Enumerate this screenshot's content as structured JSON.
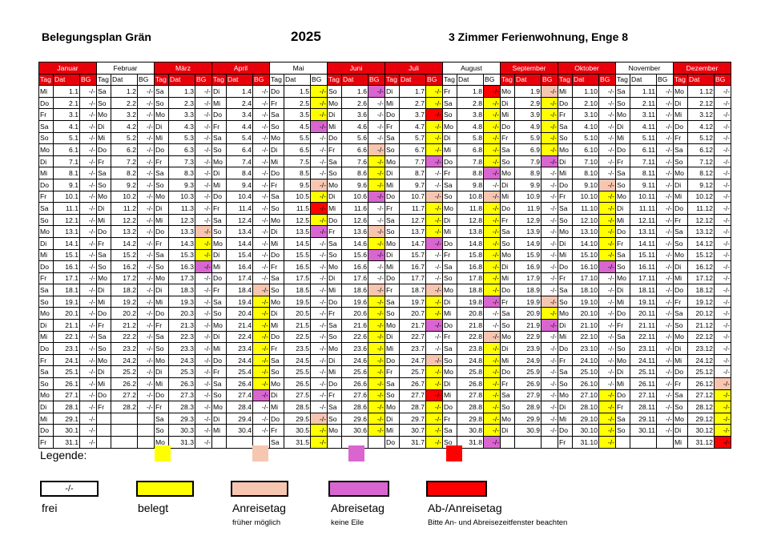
{
  "header": {
    "left": "Belegungsplan Grän",
    "year": "2025",
    "right": "3 Zimmer Ferienwohnung, Enge 8"
  },
  "columns": {
    "tag": "Tag",
    "dat": "Dat",
    "bg": "BG"
  },
  "free_mark": "-/-",
  "colors": {
    "header_red": "#e8000b",
    "belegt": "#ffff00",
    "anreisetag": "#f7c6b0",
    "abreisetag": "#d966d0",
    "ab_anreisetag": "#ff0000"
  },
  "months": [
    {
      "name": "Januar",
      "red": true,
      "days": [
        "Mi",
        "Do",
        "Fr",
        "Sa",
        "So",
        "Mo",
        "Di",
        "Mi",
        "Do",
        "Fr",
        "Sa",
        "So",
        "Mo",
        "Di",
        "Mi",
        "Do",
        "Fr",
        "Sa",
        "So",
        "Mo",
        "Di",
        "Mi",
        "Do",
        "Fr",
        "Sa",
        "So",
        "Mo",
        "Di",
        "Mi",
        "Do",
        "Fr"
      ],
      "dates": [
        "1.1",
        "2.1",
        "3.1",
        "4.1",
        "5.1",
        "6.1",
        "7.1",
        "8.1",
        "9.1",
        "10.1",
        "11.1",
        "12.1",
        "13.1",
        "14.1",
        "15.1",
        "16.1",
        "17.1",
        "18.1",
        "19.1",
        "20.1",
        "21.1",
        "22.1",
        "23.1",
        "24.1",
        "25.1",
        "26.1",
        "27.1",
        "28.1",
        "29.1",
        "30.1",
        "31.1"
      ],
      "status": {}
    },
    {
      "name": "Februar",
      "red": false,
      "days": [
        "Sa",
        "So",
        "Mo",
        "Di",
        "Mi",
        "Do",
        "Fr",
        "Sa",
        "So",
        "Mo",
        "Di",
        "Mi",
        "Do",
        "Fr",
        "Sa",
        "So",
        "Mo",
        "Di",
        "Mi",
        "Do",
        "Fr",
        "Sa",
        "So",
        "Mo",
        "Di",
        "Mi",
        "Do",
        "Fr"
      ],
      "dates": [
        "1.2",
        "2.2",
        "3.2",
        "4.2",
        "5.2",
        "6.2",
        "7.2",
        "8.2",
        "9.2",
        "10.2",
        "11.2",
        "12.2",
        "13.2",
        "14.2",
        "15.2",
        "16.2",
        "17.2",
        "18.2",
        "19.2",
        "20.2",
        "21.2",
        "22.2",
        "23.2",
        "24.2",
        "25.2",
        "26.2",
        "27.2",
        "28.2"
      ],
      "status": {}
    },
    {
      "name": "März",
      "red": true,
      "days": [
        "Sa",
        "So",
        "Mo",
        "Di",
        "Mi",
        "Do",
        "Fr",
        "Sa",
        "So",
        "Mo",
        "Di",
        "Mi",
        "Do",
        "Fr",
        "Sa",
        "So",
        "Mo",
        "Di",
        "Mi",
        "Do",
        "Fr",
        "Sa",
        "So",
        "Mo",
        "Di",
        "Mi",
        "Do",
        "Fr",
        "Sa",
        "So",
        "Mo"
      ],
      "dates": [
        "1.3",
        "2.3",
        "3.3",
        "4.3",
        "5.3",
        "6.3",
        "7.3",
        "8.3",
        "9.3",
        "10.3",
        "11.3",
        "12.3",
        "13.3",
        "14.3",
        "15.3",
        "16.3",
        "17.3",
        "18.3",
        "19.3",
        "20.3",
        "21.3",
        "22.3",
        "23.3",
        "24.3",
        "25.3",
        "26.3",
        "27.3",
        "28.3",
        "29.3",
        "30.3",
        "31.3"
      ],
      "status": {
        "13": "anreisetag",
        "14": "belegt",
        "15": "belegt",
        "16": "abreisetag"
      }
    },
    {
      "name": "April",
      "red": true,
      "days": [
        "Di",
        "Mi",
        "Do",
        "Fr",
        "Sa",
        "So",
        "Mo",
        "Di",
        "Mi",
        "Do",
        "Fr",
        "Sa",
        "So",
        "Mo",
        "Di",
        "Mi",
        "Do",
        "Fr",
        "Sa",
        "So",
        "Mo",
        "Di",
        "Mi",
        "Do",
        "Fr",
        "Sa",
        "So",
        "Mo",
        "Di",
        "Mi"
      ],
      "dates": [
        "1.4",
        "2.4",
        "3.4",
        "4.4",
        "5.4",
        "6.4",
        "7.4",
        "8.4",
        "9.4",
        "10.4",
        "11.4",
        "12.4",
        "13.4",
        "14.4",
        "15.4",
        "16.4",
        "17.4",
        "18.4",
        "19.4",
        "20.4",
        "21.4",
        "22.4",
        "23.4",
        "24.4",
        "25.4",
        "26.4",
        "27.4",
        "28.4",
        "29.4",
        "30.4"
      ],
      "status": {
        "18": "anreisetag",
        "19": "belegt",
        "20": "belegt",
        "21": "belegt",
        "22": "belegt",
        "23": "belegt",
        "24": "belegt",
        "25": "belegt",
        "26": "belegt",
        "27": "abreisetag"
      }
    },
    {
      "name": "Mai",
      "red": false,
      "days": [
        "Do",
        "Fr",
        "Sa",
        "So",
        "Mo",
        "Di",
        "Mi",
        "Do",
        "Fr",
        "Sa",
        "So",
        "Mo",
        "Di",
        "Mi",
        "Do",
        "Fr",
        "Sa",
        "So",
        "Mo",
        "Di",
        "Mi",
        "Do",
        "Fr",
        "Sa",
        "So",
        "Mo",
        "Di",
        "Mi",
        "Do",
        "Fr",
        "Sa"
      ],
      "dates": [
        "1.5",
        "2.5",
        "3.5",
        "4.5",
        "5.5",
        "6.5",
        "7.5",
        "8.5",
        "9.5",
        "10.5",
        "11.5",
        "12.5",
        "13.5",
        "14.5",
        "15.5",
        "16.5",
        "17.5",
        "18.5",
        "19.5",
        "20.5",
        "21.5",
        "22.5",
        "23.5",
        "24.5",
        "25.5",
        "26.5",
        "27.5",
        "28.5",
        "29.5",
        "30.5",
        "31.5"
      ],
      "status": {
        "1": "belegt",
        "2": "belegt",
        "3": "belegt",
        "4": "abreisetag",
        "9": "anreisetag",
        "10": "belegt",
        "11": "abanreisetag",
        "12": "belegt",
        "13": "abreisetag",
        "29": "anreisetag",
        "30": "belegt",
        "31": "belegt"
      }
    },
    {
      "name": "Juni",
      "red": true,
      "days": [
        "So",
        "Mo",
        "Di",
        "Mi",
        "Do",
        "Fr",
        "Sa",
        "So",
        "Mo",
        "Di",
        "Mi",
        "Do",
        "Fr",
        "Sa",
        "So",
        "Mo",
        "Di",
        "Mi",
        "Do",
        "Fr",
        "Sa",
        "So",
        "Mo",
        "Di",
        "Mi",
        "Do",
        "Fr",
        "Sa",
        "So",
        "Mo"
      ],
      "dates": [
        "1.6",
        "2.6",
        "3.6",
        "4.6",
        "5.6",
        "6.6",
        "7.6",
        "8.6",
        "9.6",
        "10.6",
        "11.6",
        "12.6",
        "13.6",
        "14.6",
        "15.6",
        "16.6",
        "17.6",
        "18.6",
        "19.6",
        "20.6",
        "21.6",
        "22.6",
        "23.6",
        "24.6",
        "25.6",
        "26.6",
        "27.6",
        "28.6",
        "29.6",
        "30.6"
      ],
      "status": {
        "1": "abreisetag",
        "6": "anreisetag",
        "7": "belegt",
        "8": "belegt",
        "9": "belegt",
        "10": "abreisetag",
        "13": "anreisetag",
        "14": "belegt",
        "15": "abreisetag",
        "18": "anreisetag",
        "19": "belegt",
        "20": "belegt",
        "21": "belegt",
        "22": "belegt",
        "23": "belegt",
        "24": "belegt",
        "25": "belegt",
        "26": "belegt",
        "27": "belegt",
        "28": "belegt",
        "29": "belegt",
        "30": "belegt"
      }
    },
    {
      "name": "Juli",
      "red": true,
      "days": [
        "Di",
        "Mi",
        "Do",
        "Fr",
        "Sa",
        "So",
        "Mo",
        "Di",
        "Mi",
        "Do",
        "Fr",
        "Sa",
        "So",
        "Mo",
        "Di",
        "Mi",
        "Do",
        "Fr",
        "Sa",
        "So",
        "Mo",
        "Di",
        "Mi",
        "Do",
        "Fr",
        "Sa",
        "So",
        "Mo",
        "Di",
        "Mi",
        "Do"
      ],
      "dates": [
        "1.7",
        "2.7",
        "3.7",
        "4.7",
        "5.7",
        "6.7",
        "7.7",
        "8.7",
        "9.7",
        "10.7",
        "11.7",
        "12.7",
        "13.7",
        "14.7",
        "15.7",
        "16.7",
        "17.7",
        "18.7",
        "19.7",
        "20.7",
        "21.7",
        "22.7",
        "23.7",
        "24.7",
        "25.7",
        "26.7",
        "27.7",
        "28.7",
        "29.7",
        "30.7",
        "31.7"
      ],
      "status": {
        "1": "belegt",
        "2": "belegt",
        "3": "abanreisetag",
        "4": "belegt",
        "5": "belegt",
        "6": "belegt",
        "7": "abreisetag",
        "10": "anreisetag",
        "11": "belegt",
        "12": "belegt",
        "13": "belegt",
        "14": "abreisetag",
        "18": "anreisetag",
        "19": "belegt",
        "20": "belegt",
        "21": "abreisetag",
        "24": "anreisetag",
        "25": "belegt",
        "26": "belegt",
        "27": "abanreisetag",
        "28": "belegt",
        "29": "belegt",
        "30": "belegt",
        "31": "belegt"
      }
    },
    {
      "name": "August",
      "red": false,
      "days": [
        "Fr",
        "Sa",
        "So",
        "Mo",
        "Di",
        "Mi",
        "Do",
        "Fr",
        "Sa",
        "So",
        "Mo",
        "Di",
        "Mi",
        "Do",
        "Fr",
        "Sa",
        "So",
        "Mo",
        "Di",
        "Mi",
        "Do",
        "Fr",
        "Sa",
        "So",
        "Mo",
        "Di",
        "Mi",
        "Do",
        "Fr",
        "Sa",
        "So"
      ],
      "dates": [
        "1.8",
        "2.8",
        "3.8",
        "4.8",
        "5.8",
        "6.8",
        "7.8",
        "8.8",
        "9.8",
        "10.8",
        "11.8",
        "12.8",
        "13.8",
        "14.8",
        "15.8",
        "16.8",
        "17.8",
        "18.8",
        "19.8",
        "20.8",
        "21.8",
        "22.8",
        "23.8",
        "24.8",
        "25.8",
        "26.8",
        "27.8",
        "28.8",
        "29.8",
        "30.8",
        "31.8"
      ],
      "status": {
        "1": "abanreisetag",
        "2": "belegt",
        "3": "belegt",
        "4": "belegt",
        "5": "belegt",
        "6": "belegt",
        "7": "belegt",
        "8": "abreisetag",
        "10": "anreisetag",
        "11": "belegt",
        "12": "belegt",
        "13": "belegt",
        "14": "belegt",
        "15": "belegt",
        "16": "belegt",
        "17": "belegt",
        "18": "belegt",
        "19": "abreisetag",
        "22": "anreisetag",
        "23": "belegt",
        "24": "belegt",
        "25": "belegt",
        "26": "belegt",
        "27": "belegt",
        "28": "belegt",
        "29": "belegt",
        "30": "belegt",
        "31": "abreisetag"
      }
    },
    {
      "name": "September",
      "red": true,
      "days": [
        "Mo",
        "Di",
        "Mi",
        "Do",
        "Fr",
        "Sa",
        "So",
        "Mo",
        "Di",
        "Mi",
        "Do",
        "Fr",
        "Sa",
        "So",
        "Mo",
        "Di",
        "Mi",
        "Do",
        "Fr",
        "Sa",
        "So",
        "Mo",
        "Di",
        "Mi",
        "Do",
        "Fr",
        "Sa",
        "So",
        "Mo",
        "Di"
      ],
      "dates": [
        "1.9",
        "2.9",
        "3.9",
        "4.9",
        "5.9",
        "6.9",
        "7.9",
        "8.9",
        "9.9",
        "10.9",
        "11.9",
        "12.9",
        "13.9",
        "14.9",
        "15.9",
        "16.9",
        "17.9",
        "18.9",
        "19.9",
        "20.9",
        "21.9",
        "22.9",
        "23.9",
        "24.9",
        "25.9",
        "26.9",
        "27.9",
        "28.9",
        "29.9",
        "30.9"
      ],
      "status": {
        "1": "anreisetag",
        "2": "belegt",
        "3": "belegt",
        "4": "belegt",
        "5": "belegt",
        "6": "belegt",
        "7": "abreisetag",
        "19": "anreisetag",
        "20": "belegt",
        "21": "abreisetag"
      }
    },
    {
      "name": "Oktober",
      "red": true,
      "days": [
        "Mi",
        "Do",
        "Fr",
        "Sa",
        "So",
        "Mo",
        "Di",
        "Mi",
        "Do",
        "Fr",
        "Sa",
        "So",
        "Mo",
        "Di",
        "Mi",
        "Do",
        "Fr",
        "Sa",
        "So",
        "Mo",
        "Di",
        "Mi",
        "Do",
        "Fr",
        "Sa",
        "So",
        "Mo",
        "Di",
        "Mi",
        "Do",
        "Fr"
      ],
      "dates": [
        "1.10",
        "2.10",
        "3.10",
        "4.10",
        "5.10",
        "6.10",
        "7.10",
        "8.10",
        "9.10",
        "10.10",
        "11.10",
        "12.10",
        "13.10",
        "14.10",
        "15.10",
        "16.10",
        "17.10",
        "18.10",
        "19.10",
        "20.10",
        "21.10",
        "22.10",
        "23.10",
        "24.10",
        "25.10",
        "26.10",
        "27.10",
        "28.10",
        "29.10",
        "30.10",
        "31.10"
      ],
      "status": {
        "9": "anreisetag",
        "10": "belegt",
        "11": "belegt",
        "12": "belegt",
        "13": "belegt",
        "14": "belegt",
        "15": "belegt",
        "16": "abreisetag",
        "27": "belegt",
        "28": "belegt",
        "29": "belegt",
        "30": "belegt",
        "31": "belegt"
      }
    },
    {
      "name": "November",
      "red": false,
      "days": [
        "Sa",
        "So",
        "Mo",
        "Di",
        "Mi",
        "Do",
        "Fr",
        "Sa",
        "So",
        "Mo",
        "Di",
        "Mi",
        "Do",
        "Fr",
        "Sa",
        "So",
        "Mo",
        "Di",
        "Mi",
        "Do",
        "Fr",
        "Sa",
        "So",
        "Mo",
        "Di",
        "Mi",
        "Do",
        "Fr",
        "Sa",
        "So"
      ],
      "dates": [
        "1.11",
        "2.11",
        "3.11",
        "4.11",
        "5.11",
        "6.11",
        "7.11",
        "8.11",
        "9.11",
        "10.11",
        "11.11",
        "12.11",
        "13.11",
        "14.11",
        "15.11",
        "16.11",
        "17.11",
        "18.11",
        "19.11",
        "20.11",
        "21.11",
        "22.11",
        "23.11",
        "24.11",
        "25.11",
        "26.11",
        "27.11",
        "28.11",
        "29.11",
        "30.11"
      ],
      "status": {}
    },
    {
      "name": "Dezember",
      "red": true,
      "days": [
        "Mo",
        "Di",
        "Mi",
        "Do",
        "Fr",
        "Sa",
        "So",
        "Mo",
        "Di",
        "Mi",
        "Do",
        "Fr",
        "Sa",
        "So",
        "Mo",
        "Di",
        "Mi",
        "Do",
        "Fr",
        "Sa",
        "So",
        "Mo",
        "Di",
        "Mi",
        "Do",
        "Fr",
        "Sa",
        "So",
        "Mo",
        "Di",
        "Mi"
      ],
      "dates": [
        "1.12",
        "2.12",
        "3.12",
        "4.12",
        "5.12",
        "6.12",
        "7.12",
        "8.12",
        "9.12",
        "10.12",
        "11.12",
        "12.12",
        "13.12",
        "14.12",
        "15.12",
        "16.12",
        "17.12",
        "18.12",
        "19.12",
        "20.12",
        "21.12",
        "22.12",
        "23.12",
        "24.12",
        "25.12",
        "26.12",
        "27.12",
        "28.12",
        "29.12",
        "30.12",
        "31.12"
      ],
      "status": {
        "26": "anreisetag",
        "27": "belegt",
        "28": "belegt",
        "29": "belegt",
        "30": "belegt",
        "31": "abanreisetag"
      }
    }
  ],
  "legend": {
    "label": "Legende:",
    "free_box_text": "-/-",
    "items": [
      {
        "key": "frei",
        "label": "frei",
        "note": ""
      },
      {
        "key": "belegt",
        "label": "belegt",
        "note": ""
      },
      {
        "key": "anreisetag",
        "label": "Anreisetag",
        "note": "früher möglich"
      },
      {
        "key": "abreisetag",
        "label": "Abreisetag",
        "note": "keine Eile"
      },
      {
        "key": "ab_anreisetag",
        "label": "Ab-/Anreisetag",
        "note": "Bitte An- und Abreisezeitfenster beachten"
      }
    ]
  }
}
